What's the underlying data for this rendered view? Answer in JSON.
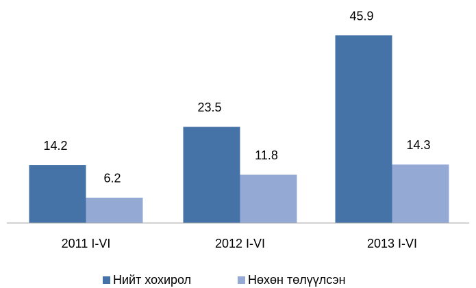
{
  "chart_data": {
    "type": "bar",
    "categories": [
      "2011 I-VI",
      "2012 I-VI",
      "2013 I-VI"
    ],
    "series": [
      {
        "name": "Нийт хохирол",
        "color": "#4573a7",
        "values": [
          14.2,
          23.5,
          45.9
        ]
      },
      {
        "name": "Нөхөн төлүүлсэн",
        "color": "#94a9d4",
        "values": [
          6.2,
          11.8,
          14.3
        ]
      }
    ],
    "ylim": [
      0,
      50
    ]
  }
}
